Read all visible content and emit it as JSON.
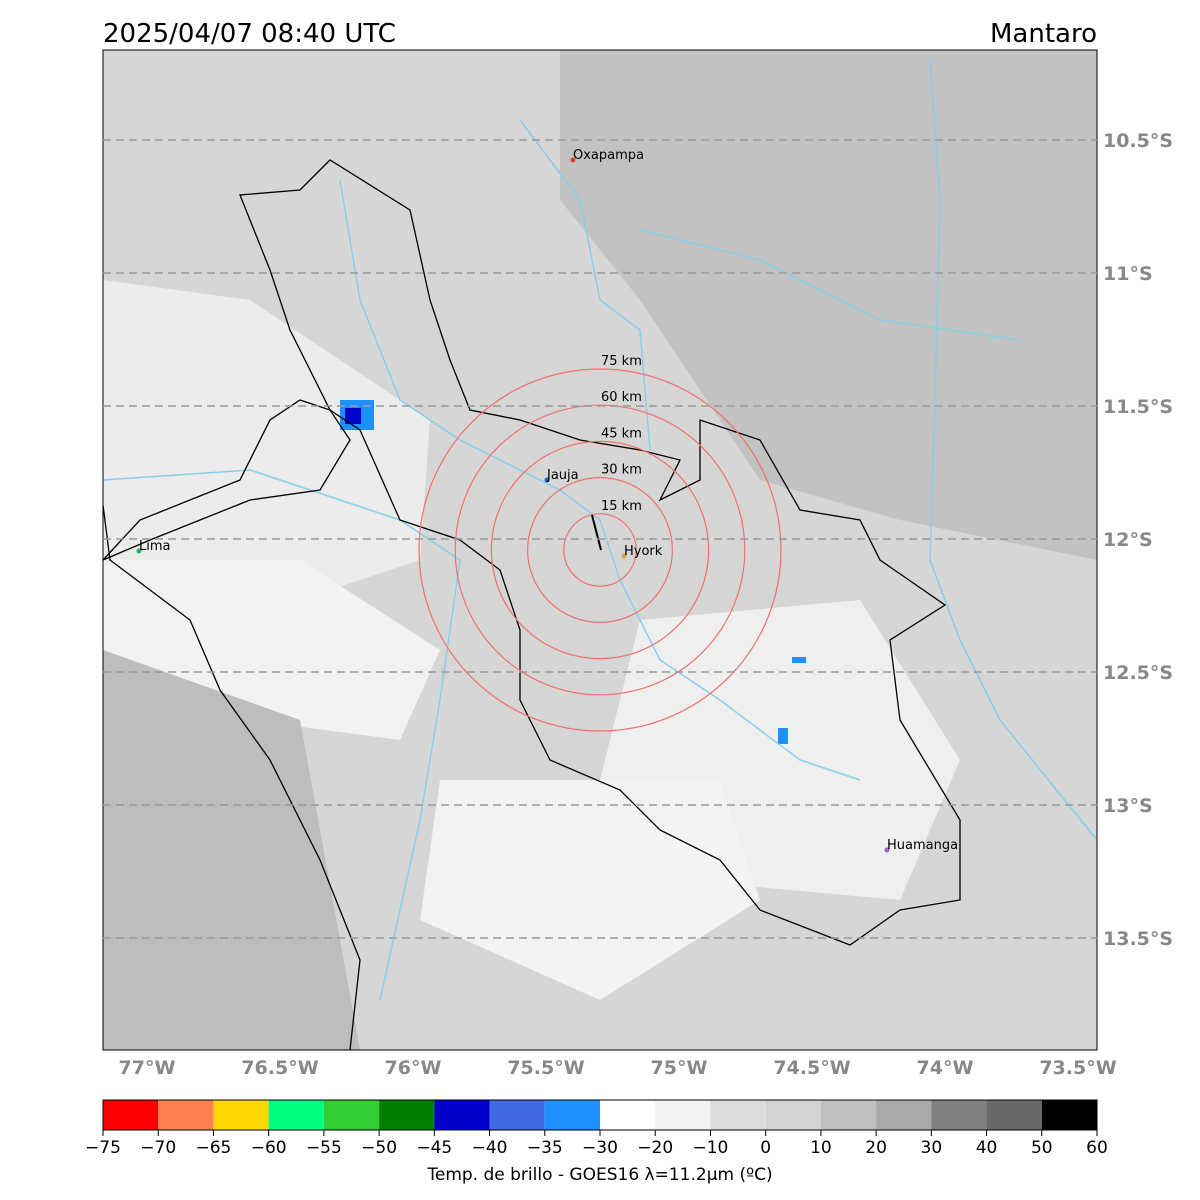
{
  "header": {
    "title": "2025/04/07 08:40 UTC",
    "region": "Mantaro"
  },
  "map": {
    "lat_ticks": [
      {
        "value": -10.5,
        "label": "10.5°S"
      },
      {
        "value": -11,
        "label": "11°S"
      },
      {
        "value": -11.5,
        "label": "11.5°S"
      },
      {
        "value": -12,
        "label": "12°S"
      },
      {
        "value": -12.5,
        "label": "12.5°S"
      },
      {
        "value": -13,
        "label": "13°S"
      },
      {
        "value": -13.5,
        "label": "13.5°S"
      }
    ],
    "lon_ticks": [
      {
        "value": -77,
        "label": "77°W"
      },
      {
        "value": -76.5,
        "label": "76.5°W"
      },
      {
        "value": -76,
        "label": "76°W"
      },
      {
        "value": -75.5,
        "label": "75.5°W"
      },
      {
        "value": -75,
        "label": "75°W"
      },
      {
        "value": -74.5,
        "label": "74.5°W"
      },
      {
        "value": -74,
        "label": "74°W"
      },
      {
        "value": -73.5,
        "label": "73.5°W"
      }
    ],
    "cities": [
      "Oxapampa",
      "Jauja",
      "Hyork",
      "Lima",
      "Huamanga"
    ],
    "rings": [
      "15 km",
      "30 km",
      "45 km",
      "60 km",
      "75 km"
    ]
  },
  "colorbar": {
    "ticks": [
      {
        "value": -75,
        "label": "−75"
      },
      {
        "value": -70,
        "label": "−70"
      },
      {
        "value": -65,
        "label": "−65"
      },
      {
        "value": -60,
        "label": "−60"
      },
      {
        "value": -55,
        "label": "−55"
      },
      {
        "value": -50,
        "label": "−50"
      },
      {
        "value": -45,
        "label": "−45"
      },
      {
        "value": -40,
        "label": "−40"
      },
      {
        "value": -35,
        "label": "−35"
      },
      {
        "value": -30,
        "label": "−30"
      },
      {
        "value": -20,
        "label": "−20"
      },
      {
        "value": -10,
        "label": "−10"
      },
      0,
      10,
      20,
      30,
      40,
      50,
      60
    ],
    "colors": [
      "#ff0000",
      "#ff7f50",
      "#ffd700",
      "#00ff7f",
      "#32cd32",
      "#008000",
      "#0000cd",
      "#4169e1",
      "#1e90ff",
      "#ffffff",
      "#f2f2f2",
      "#dcdcdc",
      "#d3d3d3",
      "#c0c0c0",
      "#a9a9a9",
      "#808080",
      "#696969",
      "#000000"
    ],
    "label": "Temp. de brillo - GOES16 λ=11.2μm (ºC)"
  }
}
